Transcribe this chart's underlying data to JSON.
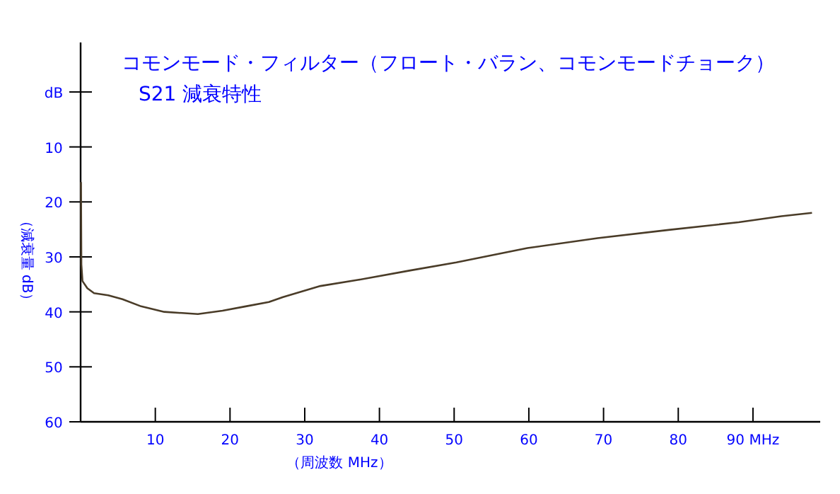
{
  "chart_data": {
    "type": "line",
    "title": "コモンモード・フィルター（フロート・バラン、コモンモードチョーク）",
    "subtitle": "S21  減衰特性",
    "xlabel": "（周波数 MHz）",
    "ylabel": "（減衰量 dB）",
    "xlim": [
      0,
      99
    ],
    "ylim": [
      60,
      -9
    ],
    "xticks": [
      10,
      20,
      30,
      40,
      50,
      60,
      70,
      80,
      {
        "value": 90,
        "label": "90 MHz"
      }
    ],
    "yticks": [
      {
        "value": 0,
        "label": "dB"
      },
      10,
      20,
      30,
      40,
      50,
      60
    ],
    "series": [
      {
        "color": "#4a3c28",
        "x": [
          0.05,
          0.1,
          0.25,
          0.9,
          1.8,
          3.7,
          5.6,
          8.1,
          11.2,
          15.7,
          19.0,
          22.1,
          25.2,
          27.1,
          32.1,
          37.1,
          44.0,
          50.3,
          59.8,
          69.2,
          78.7,
          88.1,
          93.8,
          97.9
        ],
        "values": [
          16.4,
          31.4,
          34.4,
          35.7,
          36.6,
          37.0,
          37.7,
          39.0,
          40.0,
          40.4,
          39.8,
          39.0,
          38.2,
          37.3,
          35.3,
          34.2,
          32.5,
          31.0,
          28.4,
          26.6,
          25.1,
          23.7,
          22.6,
          22.0
        ]
      }
    ]
  }
}
